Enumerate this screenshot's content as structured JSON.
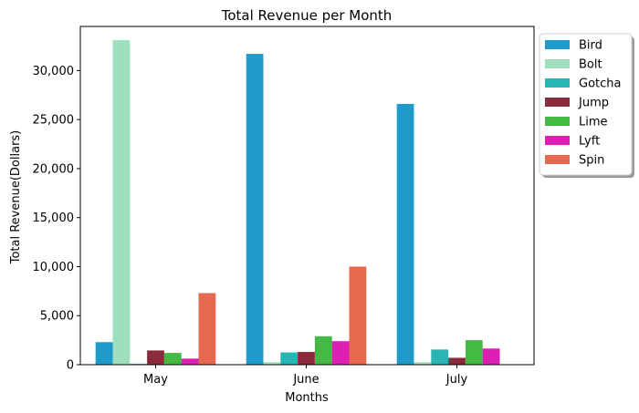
{
  "chart_data": {
    "type": "bar",
    "title": "Total Revenue per Month",
    "xlabel": "Months",
    "ylabel": "Total Revenue(Dollars)",
    "categories": [
      "May",
      "June",
      "July"
    ],
    "ylim": [
      0,
      34500
    ],
    "yticks": [
      0,
      5000,
      10000,
      15000,
      20000,
      25000,
      30000
    ],
    "ytick_labels": [
      "0",
      "5,000",
      "10,000",
      "15,000",
      "20,000",
      "25,000",
      "30,000"
    ],
    "grid": false,
    "legend_position": "outside top-right",
    "series": [
      {
        "name": "Bird",
        "color": "#1f9bcb",
        "values": [
          2300,
          31700,
          26600
        ]
      },
      {
        "name": "Bolt",
        "color": "#9fdfbe",
        "values": [
          33100,
          250,
          250
        ]
      },
      {
        "name": "Gotcha",
        "color": "#2ab5b5",
        "values": [
          80,
          1250,
          1550
        ]
      },
      {
        "name": "Jump",
        "color": "#8b2a3a",
        "values": [
          1450,
          1300,
          700
        ]
      },
      {
        "name": "Lime",
        "color": "#44b944",
        "values": [
          1200,
          2900,
          2500
        ]
      },
      {
        "name": "Lyft",
        "color": "#de1fb4",
        "values": [
          620,
          2400,
          1650
        ]
      },
      {
        "name": "Spin",
        "color": "#e8684f",
        "values": [
          7300,
          10000,
          0
        ]
      }
    ]
  }
}
